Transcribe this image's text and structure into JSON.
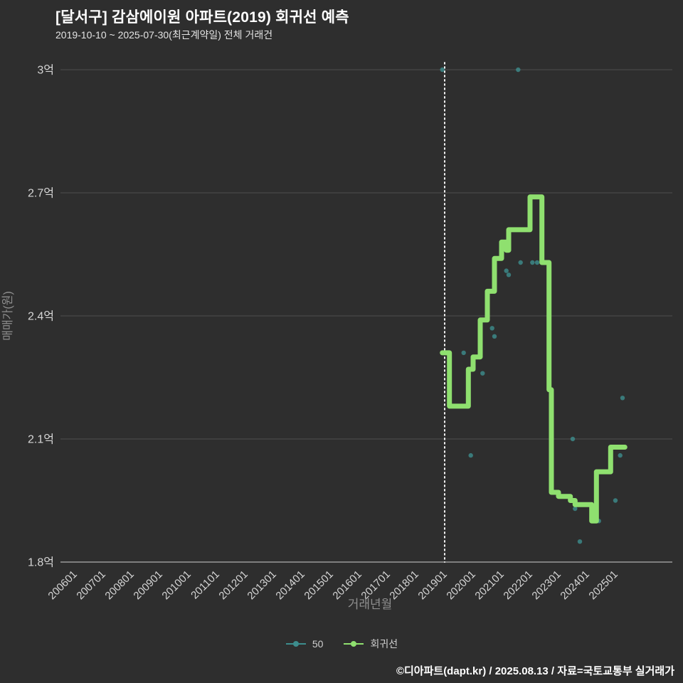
{
  "title": "[달서구] 감삼에이원 아파트(2019) 회귀선 예측",
  "subtitle": "2019-10-10 ~ 2025-07-30(최근계약일) 전체 거래건",
  "footer": "©디아파트(dapt.kr) / 2025.08.13 / 자료=국토교통부 실거래가",
  "legend": {
    "items": [
      {
        "label": "50",
        "color": "#3d8d8d"
      },
      {
        "label": "회귀선",
        "color": "#8fe06f"
      }
    ]
  },
  "chart_data": {
    "type": "line",
    "title": "[달서구] 감삼에이원 아파트(2019) 회귀선 예측",
    "subtitle": "2019-10-10 ~ 2025-07-30(최근계약일) 전체 거래건",
    "xlabel": "거래년월",
    "ylabel": "매매가(원)",
    "ylim": [
      1.8,
      3.0
    ],
    "y_unit": "억",
    "grid": true,
    "legend_position": "bottom",
    "y_ticks": [
      {
        "value": 3.0,
        "label": "3억"
      },
      {
        "value": 2.7,
        "label": "2.7억"
      },
      {
        "value": 2.4,
        "label": "2.4억"
      },
      {
        "value": 2.1,
        "label": "2.1억"
      },
      {
        "value": 1.8,
        "label": "1.8억"
      }
    ],
    "x_ticks": [
      "200601",
      "200701",
      "200801",
      "200901",
      "201001",
      "201101",
      "201201",
      "201301",
      "201401",
      "201501",
      "201601",
      "201701",
      "201801",
      "201901",
      "202001",
      "202101",
      "202201",
      "202301",
      "202401",
      "202501"
    ],
    "vline_ym": "201901",
    "series": [
      {
        "name": "50",
        "type": "scatter",
        "color": "#3d8d8d",
        "points": [
          [
            "201812",
            3.0
          ],
          [
            "202108",
            3.0
          ],
          [
            "201909",
            2.31
          ],
          [
            "201912",
            2.06
          ],
          [
            "202005",
            2.26
          ],
          [
            "202009",
            2.37
          ],
          [
            "202010",
            2.35
          ],
          [
            "202103",
            2.51
          ],
          [
            "202104",
            2.5
          ],
          [
            "202109",
            2.53
          ],
          [
            "202202",
            2.53
          ],
          [
            "202204",
            2.53
          ],
          [
            "202307",
            2.1
          ],
          [
            "202308",
            1.93
          ],
          [
            "202310",
            1.85
          ],
          [
            "202406",
            1.9
          ],
          [
            "202501",
            1.95
          ],
          [
            "202503",
            2.06
          ],
          [
            "202504",
            2.2
          ]
        ]
      },
      {
        "name": "회귀선",
        "type": "step-line",
        "color": "#8fe06f",
        "points": [
          [
            "201812",
            2.31
          ],
          [
            "201903",
            2.31
          ],
          [
            "201903",
            2.18
          ],
          [
            "201911",
            2.18
          ],
          [
            "201911",
            2.27
          ],
          [
            "202001",
            2.27
          ],
          [
            "202001",
            2.3
          ],
          [
            "202004",
            2.3
          ],
          [
            "202004",
            2.39
          ],
          [
            "202007",
            2.39
          ],
          [
            "202007",
            2.46
          ],
          [
            "202010",
            2.46
          ],
          [
            "202010",
            2.54
          ],
          [
            "202101",
            2.54
          ],
          [
            "202101",
            2.58
          ],
          [
            "202103",
            2.58
          ],
          [
            "202103",
            2.56
          ],
          [
            "202104",
            2.56
          ],
          [
            "202104",
            2.61
          ],
          [
            "202201",
            2.61
          ],
          [
            "202201",
            2.69
          ],
          [
            "202206",
            2.69
          ],
          [
            "202206",
            2.53
          ],
          [
            "202209",
            2.53
          ],
          [
            "202209",
            2.22
          ],
          [
            "202210",
            2.22
          ],
          [
            "202210",
            1.97
          ],
          [
            "202301",
            1.97
          ],
          [
            "202301",
            1.96
          ],
          [
            "202306",
            1.96
          ],
          [
            "202306",
            1.95
          ],
          [
            "202308",
            1.95
          ],
          [
            "202308",
            1.94
          ],
          [
            "202403",
            1.94
          ],
          [
            "202403",
            1.9
          ],
          [
            "202405",
            1.9
          ],
          [
            "202405",
            2.02
          ],
          [
            "202411",
            2.02
          ],
          [
            "202411",
            2.08
          ],
          [
            "202505",
            2.08
          ]
        ]
      }
    ]
  }
}
